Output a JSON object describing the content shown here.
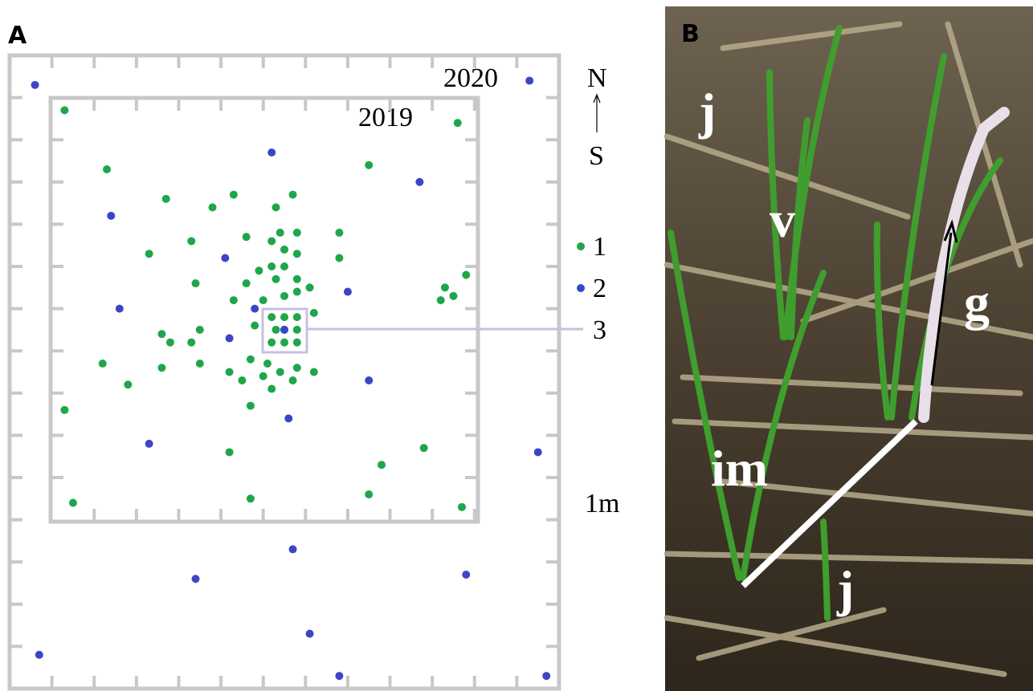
{
  "panel_labels": [
    "A",
    "B"
  ],
  "chart_data": {
    "type": "scatter",
    "series": [
      {
        "name": "1",
        "color": "#1fa64a",
        "x": [
          1.3,
          10.6,
          2.3,
          8.5,
          3.7,
          5.3,
          6.7,
          4.8,
          6.3,
          4.3,
          5.6,
          6.4,
          6.8,
          7.8,
          3.3,
          6.2,
          6.5,
          6.8,
          7.8,
          5.9,
          6.2,
          6.5,
          5.6,
          6.3,
          6.8,
          10.8,
          4.4,
          10.3,
          10.5,
          10.2,
          5.3,
          6.0,
          6.5,
          6.8,
          7.1,
          7.2,
          6.2,
          6.5,
          6.8,
          5.8,
          6.3,
          6.5,
          6.8,
          4.5,
          3.6,
          3.8,
          4.3,
          6.2,
          6.5,
          6.8,
          5.7,
          6.1,
          6.8,
          2.2,
          3.6,
          4.5,
          5.2,
          5.5,
          6.0,
          6.4,
          6.7,
          7.2,
          2.8,
          6.2,
          5.7,
          1.3,
          9.8,
          5.2,
          8.8,
          8.5,
          1.5,
          5.7,
          10.7
        ],
        "values": [
          13.7,
          13.4,
          12.3,
          12.4,
          11.6,
          11.7,
          11.7,
          11.4,
          11.4,
          10.6,
          10.7,
          10.8,
          10.8,
          10.8,
          10.3,
          10.6,
          10.4,
          10.3,
          10.2,
          9.9,
          10.0,
          10.0,
          9.6,
          9.7,
          9.7,
          9.8,
          9.6,
          9.5,
          9.3,
          9.2,
          9.2,
          9.2,
          9.3,
          9.4,
          9.5,
          8.9,
          8.8,
          8.8,
          8.8,
          8.6,
          8.5,
          8.5,
          8.5,
          8.5,
          8.4,
          8.2,
          8.2,
          8.2,
          8.2,
          8.2,
          7.8,
          7.7,
          7.6,
          7.7,
          7.6,
          7.7,
          7.5,
          7.3,
          7.4,
          7.5,
          7.3,
          7.5,
          7.2,
          7.1,
          6.7,
          6.6,
          5.7,
          5.6,
          5.3,
          4.6,
          4.4,
          4.5,
          4.3
        ]
      },
      {
        "name": "2",
        "color": "#3b46c6",
        "x": [
          0.6,
          12.3,
          6.2,
          9.7,
          2.4,
          5.1,
          2.6,
          8.0,
          5.8,
          6.5,
          5.2,
          8.5,
          6.6,
          3.3,
          12.5,
          6.7,
          4.4,
          10.8,
          7.1,
          0.7,
          7.8,
          12.7
        ],
        "values": [
          14.3,
          14.4,
          12.7,
          12.0,
          11.2,
          10.2,
          9.0,
          9.4,
          9.0,
          8.5,
          8.3,
          7.3,
          6.4,
          5.8,
          5.6,
          3.3,
          2.6,
          2.7,
          1.3,
          0.8,
          0.3,
          0.3
        ]
      }
    ],
    "xlim": [
      0,
      13
    ],
    "ylim": [
      0,
      15
    ],
    "xticks": [
      1,
      2,
      3,
      4,
      5,
      6,
      7,
      8,
      9,
      10,
      11,
      12
    ],
    "yticks": [
      1,
      2,
      3,
      4,
      5,
      6,
      7,
      8,
      9,
      10,
      11,
      12,
      13,
      14
    ],
    "annotations": [
      "2020",
      "2019",
      "N",
      "S",
      "3",
      "1m"
    ]
  },
  "photo": {
    "labels": [
      "j",
      "v",
      "g",
      "im",
      "j"
    ]
  }
}
